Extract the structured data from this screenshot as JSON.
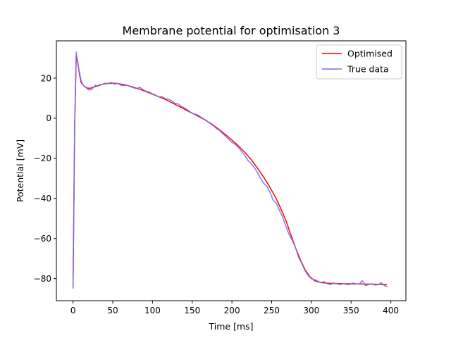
{
  "chart_data": {
    "type": "line",
    "title": "Membrane potential for optimisation 3",
    "xlabel": "Time [ms]",
    "ylabel": "Potential [mV]",
    "xlim": [
      -21,
      419
    ],
    "ylim": [
      -91,
      38.6
    ],
    "xticks": [
      0,
      50,
      100,
      150,
      200,
      250,
      300,
      350,
      400
    ],
    "yticks": [
      -80,
      -60,
      -40,
      -20,
      0,
      20
    ],
    "grid": false,
    "legend_position": "top-right",
    "series": [
      {
        "name": "Optimised",
        "color": "#ff0000",
        "points": [
          [
            0,
            -84
          ],
          [
            2,
            -5
          ],
          [
            4,
            31
          ],
          [
            6,
            28
          ],
          [
            8,
            22
          ],
          [
            10,
            18
          ],
          [
            14,
            16
          ],
          [
            18,
            15
          ],
          [
            22,
            15
          ],
          [
            28,
            15.8
          ],
          [
            35,
            16.8
          ],
          [
            42,
            17.3
          ],
          [
            50,
            17.5
          ],
          [
            58,
            17.2
          ],
          [
            66,
            16.6
          ],
          [
            75,
            15.6
          ],
          [
            85,
            14.3
          ],
          [
            95,
            12.8
          ],
          [
            105,
            11.2
          ],
          [
            115,
            9.6
          ],
          [
            125,
            7.6
          ],
          [
            135,
            5.6
          ],
          [
            145,
            3.5
          ],
          [
            155,
            1.5
          ],
          [
            165,
            -0.6
          ],
          [
            175,
            -3
          ],
          [
            185,
            -6
          ],
          [
            195,
            -9.2
          ],
          [
            205,
            -12.6
          ],
          [
            215,
            -16.5
          ],
          [
            225,
            -21
          ],
          [
            235,
            -26.5
          ],
          [
            245,
            -32.5
          ],
          [
            255,
            -39.5
          ],
          [
            262,
            -45.5
          ],
          [
            268,
            -51
          ],
          [
            274,
            -58
          ],
          [
            280,
            -64.5
          ],
          [
            286,
            -70.5
          ],
          [
            292,
            -75.5
          ],
          [
            298,
            -79
          ],
          [
            304,
            -81
          ],
          [
            312,
            -82
          ],
          [
            322,
            -82.3
          ],
          [
            335,
            -82.5
          ],
          [
            350,
            -82.6
          ],
          [
            365,
            -82.7
          ],
          [
            380,
            -82.8
          ],
          [
            395,
            -83
          ]
        ]
      },
      {
        "name": "True data",
        "color": "#7070ee",
        "points": [
          [
            0,
            -85
          ],
          [
            2,
            -3
          ],
          [
            4,
            33
          ],
          [
            6,
            27
          ],
          [
            8,
            23
          ],
          [
            10,
            19
          ],
          [
            12,
            17
          ],
          [
            14,
            16
          ],
          [
            17,
            15
          ],
          [
            20,
            14
          ],
          [
            24,
            14.5
          ],
          [
            28,
            16.5
          ],
          [
            32,
            16
          ],
          [
            36,
            16.8
          ],
          [
            40,
            17.5
          ],
          [
            44,
            17.2
          ],
          [
            48,
            17.8
          ],
          [
            52,
            17
          ],
          [
            56,
            17.5
          ],
          [
            60,
            16.5
          ],
          [
            64,
            16.2
          ],
          [
            68,
            16.5
          ],
          [
            72,
            15.8
          ],
          [
            76,
            15.2
          ],
          [
            80,
            14.8
          ],
          [
            84,
            15.5
          ],
          [
            88,
            14.2
          ],
          [
            92,
            13.5
          ],
          [
            96,
            13
          ],
          [
            100,
            12.2
          ],
          [
            104,
            11.5
          ],
          [
            108,
            10.5
          ],
          [
            112,
            10.8
          ],
          [
            116,
            9.8
          ],
          [
            120,
            9.5
          ],
          [
            124,
            8.8
          ],
          [
            128,
            7.5
          ],
          [
            132,
            7.2
          ],
          [
            136,
            6
          ],
          [
            140,
            5.2
          ],
          [
            144,
            4.2
          ],
          [
            148,
            3
          ],
          [
            152,
            2.2
          ],
          [
            156,
            1.8
          ],
          [
            160,
            0.8
          ],
          [
            164,
            -0.2
          ],
          [
            168,
            -1.2
          ],
          [
            172,
            -2.5
          ],
          [
            176,
            -3.5
          ],
          [
            180,
            -5
          ],
          [
            184,
            -6
          ],
          [
            188,
            -7.5
          ],
          [
            192,
            -9
          ],
          [
            196,
            -10.5
          ],
          [
            200,
            -12
          ],
          [
            204,
            -13
          ],
          [
            208,
            -14.5
          ],
          [
            212,
            -16.5
          ],
          [
            216,
            -18.5
          ],
          [
            220,
            -21
          ],
          [
            224,
            -22.5
          ],
          [
            228,
            -24.5
          ],
          [
            232,
            -27
          ],
          [
            236,
            -30
          ],
          [
            240,
            -32.5
          ],
          [
            244,
            -34
          ],
          [
            248,
            -37
          ],
          [
            252,
            -41
          ],
          [
            256,
            -42.5
          ],
          [
            260,
            -46
          ],
          [
            264,
            -49.5
          ],
          [
            268,
            -54
          ],
          [
            272,
            -58
          ],
          [
            276,
            -61
          ],
          [
            280,
            -64.5
          ],
          [
            284,
            -69.5
          ],
          [
            288,
            -72.5
          ],
          [
            292,
            -76
          ],
          [
            296,
            -78.5
          ],
          [
            300,
            -80
          ],
          [
            304,
            -80.5
          ],
          [
            308,
            -81.2
          ],
          [
            312,
            -82
          ],
          [
            316,
            -81.5
          ],
          [
            320,
            -82.5
          ],
          [
            324,
            -83
          ],
          [
            328,
            -82.2
          ],
          [
            332,
            -82.5
          ],
          [
            336,
            -83
          ],
          [
            340,
            -82.5
          ],
          [
            344,
            -82.8
          ],
          [
            348,
            -83
          ],
          [
            352,
            -82.2
          ],
          [
            356,
            -82.5
          ],
          [
            360,
            -82.8
          ],
          [
            364,
            -81
          ],
          [
            368,
            -83.5
          ],
          [
            372,
            -83
          ],
          [
            376,
            -82.5
          ],
          [
            380,
            -83.2
          ],
          [
            384,
            -83
          ],
          [
            388,
            -82
          ],
          [
            392,
            -83.5
          ],
          [
            396,
            -84
          ]
        ]
      }
    ]
  }
}
